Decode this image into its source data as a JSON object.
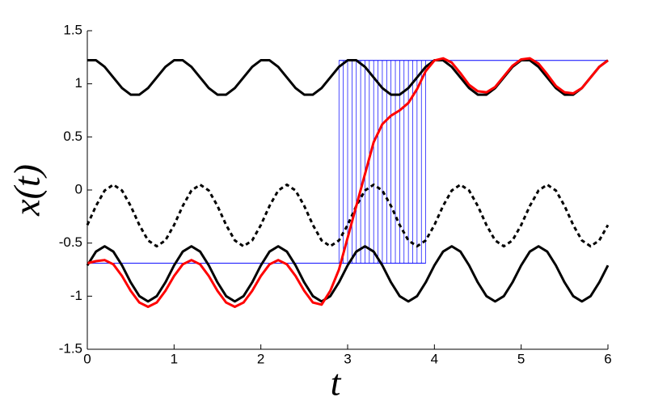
{
  "chart_data": {
    "type": "line",
    "xlabel": "t",
    "ylabel": "x(t)",
    "xlim": [
      0,
      6
    ],
    "ylim": [
      -1.5,
      1.5
    ],
    "xticks": [
      0,
      1,
      2,
      3,
      4,
      5,
      6
    ],
    "yticks": [
      -1.5,
      -1,
      -0.5,
      0,
      0.5,
      1,
      1.5
    ],
    "x": [
      0,
      0.1,
      0.2,
      0.3,
      0.4,
      0.5,
      0.6,
      0.7,
      0.8,
      0.9,
      1,
      1.1,
      1.2,
      1.3,
      1.4,
      1.5,
      1.6,
      1.7,
      1.8,
      1.9,
      2,
      2.1,
      2.2,
      2.3,
      2.4,
      2.5,
      2.6,
      2.7,
      2.8,
      2.9,
      3,
      3.1,
      3.2,
      3.3,
      3.4,
      3.5,
      3.6,
      3.7,
      3.8,
      3.9,
      4,
      4.1,
      4.2,
      4.3,
      4.4,
      4.5,
      4.6,
      4.7,
      4.8,
      4.9,
      5,
      5.1,
      5.2,
      5.3,
      5.4,
      5.5,
      5.6,
      5.7,
      5.8,
      5.9,
      6
    ],
    "vlines": {
      "color": "#0000ff",
      "x": [
        2.9,
        2.95,
        3,
        3.05,
        3.1,
        3.15,
        3.2,
        3.25,
        3.3,
        3.35,
        3.4,
        3.45,
        3.5,
        3.55,
        3.6,
        3.65,
        3.7,
        3.75,
        3.8,
        3.85,
        3.9
      ],
      "ymin": -0.69,
      "ymax": 1.22
    },
    "hlines": [
      {
        "color": "#0000ff",
        "y": -0.69,
        "xmin": 0,
        "xmax": 3.9
      },
      {
        "color": "#0000ff",
        "y": 1.22,
        "xmin": 2.9,
        "xmax": 6
      }
    ],
    "series": [
      {
        "color": "#000000",
        "dashed": false,
        "values": [
          1.222,
          1.222,
          1.16,
          1.06,
          0.96,
          0.898,
          0.898,
          0.96,
          1.06,
          1.16,
          1.222,
          1.222,
          1.16,
          1.06,
          0.96,
          0.898,
          0.898,
          0.96,
          1.06,
          1.16,
          1.222,
          1.222,
          1.16,
          1.06,
          0.96,
          0.898,
          0.898,
          0.96,
          1.06,
          1.16,
          1.222,
          1.222,
          1.16,
          1.06,
          0.96,
          0.898,
          0.898,
          0.96,
          1.06,
          1.16,
          1.222,
          1.222,
          1.16,
          1.06,
          0.96,
          0.898,
          0.898,
          0.96,
          1.06,
          1.16,
          1.222,
          1.222,
          1.16,
          1.06,
          0.96,
          0.898,
          0.898,
          0.96,
          1.06,
          1.16,
          1.222
        ]
      },
      {
        "color": "#000000",
        "dashed": true,
        "values": [
          -0.33,
          -0.15,
          -0.005,
          0.05,
          -0.005,
          -0.15,
          -0.33,
          -0.475,
          -0.53,
          -0.475,
          -0.33,
          -0.15,
          -0.005,
          0.05,
          -0.005,
          -0.15,
          -0.33,
          -0.475,
          -0.53,
          -0.475,
          -0.33,
          -0.15,
          -0.005,
          0.05,
          -0.005,
          -0.15,
          -0.33,
          -0.475,
          -0.53,
          -0.475,
          -0.33,
          -0.15,
          -0.005,
          0.05,
          -0.005,
          -0.15,
          -0.33,
          -0.475,
          -0.53,
          -0.475,
          -0.33,
          -0.15,
          -0.005,
          0.05,
          -0.005,
          -0.15,
          -0.33,
          -0.475,
          -0.53,
          -0.475,
          -0.33,
          -0.15,
          -0.005,
          0.05,
          -0.005,
          -0.15,
          -0.33,
          -0.475,
          -0.53,
          -0.475,
          -0.33
        ]
      },
      {
        "color": "#000000",
        "dashed": false,
        "values": [
          -0.71,
          -0.58,
          -0.53,
          -0.58,
          -0.71,
          -0.87,
          -1,
          -1.05,
          -1,
          -0.87,
          -0.71,
          -0.58,
          -0.53,
          -0.58,
          -0.71,
          -0.87,
          -1,
          -1.05,
          -1,
          -0.87,
          -0.71,
          -0.58,
          -0.53,
          -0.58,
          -0.71,
          -0.87,
          -1,
          -1.05,
          -1,
          -0.87,
          -0.71,
          -0.58,
          -0.53,
          -0.58,
          -0.71,
          -0.87,
          -1,
          -1.05,
          -1,
          -0.87,
          -0.71,
          -0.58,
          -0.53,
          -0.58,
          -0.71,
          -0.87,
          -1,
          -1.05,
          -1,
          -0.87,
          -0.71,
          -0.58,
          -0.53,
          -0.58,
          -0.71,
          -0.87,
          -1,
          -1.05,
          -1,
          -0.87,
          -0.71
        ]
      },
      {
        "color": "#ff0000",
        "dashed": false,
        "values": [
          -0.69,
          -0.67,
          -0.66,
          -0.7,
          -0.81,
          -0.95,
          -1.06,
          -1.1,
          -1.06,
          -0.95,
          -0.81,
          -0.7,
          -0.66,
          -0.7,
          -0.81,
          -0.95,
          -1.06,
          -1.1,
          -1.06,
          -0.95,
          -0.81,
          -0.7,
          -0.66,
          -0.7,
          -0.81,
          -0.95,
          -1.06,
          -1.08,
          -0.95,
          -0.75,
          -0.45,
          -0.15,
          0.15,
          0.45,
          0.62,
          0.7,
          0.75,
          0.82,
          0.95,
          1.12,
          1.22,
          1.24,
          1.2,
          1.1,
          0.99,
          0.93,
          0.92,
          0.97,
          1.07,
          1.17,
          1.23,
          1.24,
          1.19,
          1.09,
          0.98,
          0.92,
          0.91,
          0.96,
          1.06,
          1.16,
          1.22
        ]
      }
    ]
  }
}
